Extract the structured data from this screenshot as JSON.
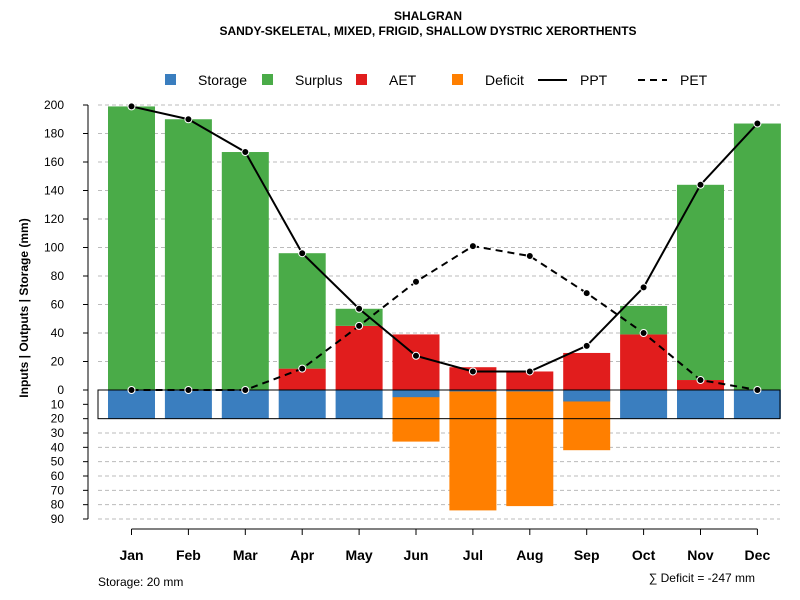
{
  "chart_data": {
    "type": "bar",
    "title": "SHALGRAN",
    "subtitle": "SANDY-SKELETAL, MIXED, FRIGID, SHALLOW DYSTRIC XERORTHENTS",
    "ylabel": "Inputs | Outputs | Storage    (mm)",
    "categories": [
      "Jan",
      "Feb",
      "Mar",
      "Apr",
      "May",
      "Jun",
      "Jul",
      "Aug",
      "Sep",
      "Oct",
      "Nov",
      "Dec"
    ],
    "ylim_upper": [
      0,
      200
    ],
    "ylim_lower": [
      0,
      90
    ],
    "yticks_upper": [
      "0",
      "20",
      "40",
      "60",
      "80",
      "100",
      "120",
      "140",
      "160",
      "180",
      "200"
    ],
    "yticks_lower": [
      "10",
      "20",
      "30",
      "40",
      "50",
      "60",
      "70",
      "80",
      "90"
    ],
    "legend": {
      "position": "top",
      "items": [
        {
          "label": "Storage",
          "kind": "box",
          "color": "#3a7ebf"
        },
        {
          "label": "Surplus",
          "kind": "box",
          "color": "#4aab48"
        },
        {
          "label": "AET",
          "kind": "box",
          "color": "#e11d1d"
        },
        {
          "label": "Deficit",
          "kind": "box",
          "color": "#ff7f00"
        },
        {
          "label": "PPT",
          "kind": "solid-line",
          "color": "#000000"
        },
        {
          "label": "PET",
          "kind": "dashed-line",
          "color": "#000000"
        }
      ]
    },
    "series": [
      {
        "name": "AET",
        "values": [
          0,
          0,
          0,
          15,
          45,
          39,
          16,
          13,
          26,
          39,
          7,
          0
        ]
      },
      {
        "name": "Surplus",
        "values": [
          199,
          190,
          167,
          81,
          12,
          0,
          0,
          0,
          0,
          20,
          137,
          187
        ]
      },
      {
        "name": "Storage",
        "values": [
          20,
          20,
          20,
          20,
          20,
          5,
          1,
          1,
          8,
          20,
          20,
          20
        ]
      },
      {
        "name": "Deficit",
        "values": [
          0,
          0,
          0,
          0,
          0,
          36,
          84,
          81,
          42,
          2,
          0,
          0
        ]
      },
      {
        "name": "PPT",
        "values": [
          199,
          190,
          167,
          96,
          57,
          24,
          13,
          13,
          31,
          72,
          144,
          187
        ]
      },
      {
        "name": "PET",
        "values": [
          0,
          0,
          0,
          15,
          45,
          76,
          101,
          94,
          68,
          40,
          7,
          0
        ]
      }
    ],
    "grid": true,
    "storage_note": "Storage: 20 mm",
    "deficit_note": "∑ Deficit = -247 mm"
  }
}
